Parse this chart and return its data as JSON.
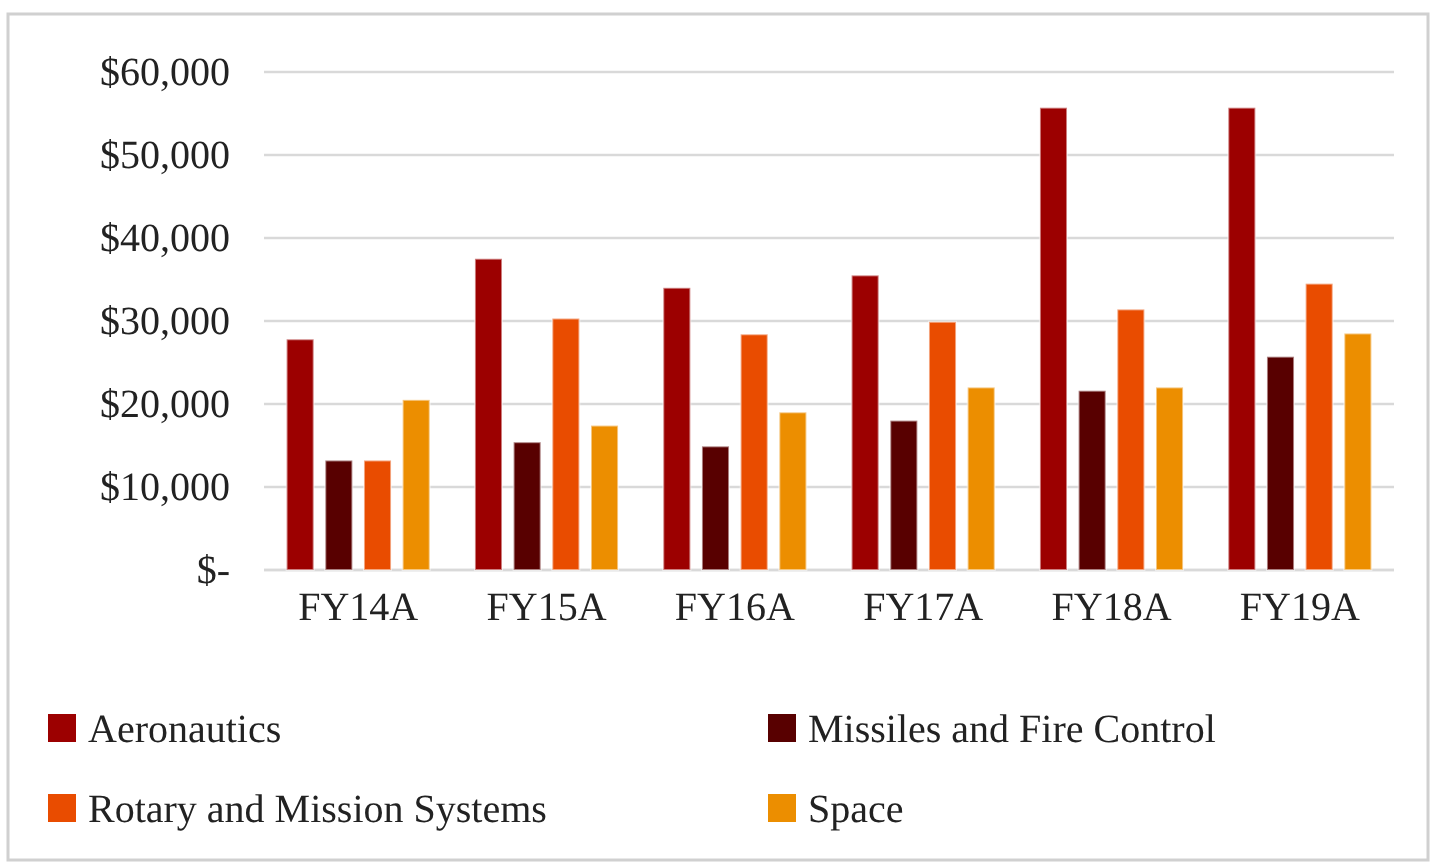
{
  "chart_data": {
    "type": "bar",
    "categories": [
      "FY14A",
      "FY15A",
      "FY16A",
      "FY17A",
      "FY18A",
      "FY19A"
    ],
    "series": [
      {
        "name": "Aeronautics",
        "color": "#9c0000",
        "values": [
          27800,
          37500,
          34000,
          35500,
          55700,
          55700
        ]
      },
      {
        "name": "Missiles and Fire Control",
        "color": "#580000",
        "values": [
          13200,
          15400,
          14900,
          18000,
          21600,
          25700
        ]
      },
      {
        "name": "Rotary and Mission Systems",
        "color": "#e94c00",
        "values": [
          13200,
          30300,
          28400,
          29900,
          31400,
          34500
        ]
      },
      {
        "name": "Space",
        "color": "#ec8e00",
        "values": [
          20500,
          17400,
          19000,
          22000,
          22000,
          28500
        ]
      }
    ],
    "ylim": [
      0,
      60000
    ],
    "yticks": [
      {
        "value": 0,
        "label": "$-"
      },
      {
        "value": 10000,
        "label": "$10,000"
      },
      {
        "value": 20000,
        "label": "$20,000"
      },
      {
        "value": 30000,
        "label": "$30,000"
      },
      {
        "value": 40000,
        "label": "$40,000"
      },
      {
        "value": 50000,
        "label": "$50,000"
      },
      {
        "value": 60000,
        "label": "$60,000"
      }
    ],
    "grid": "y",
    "legend": "bottom"
  }
}
